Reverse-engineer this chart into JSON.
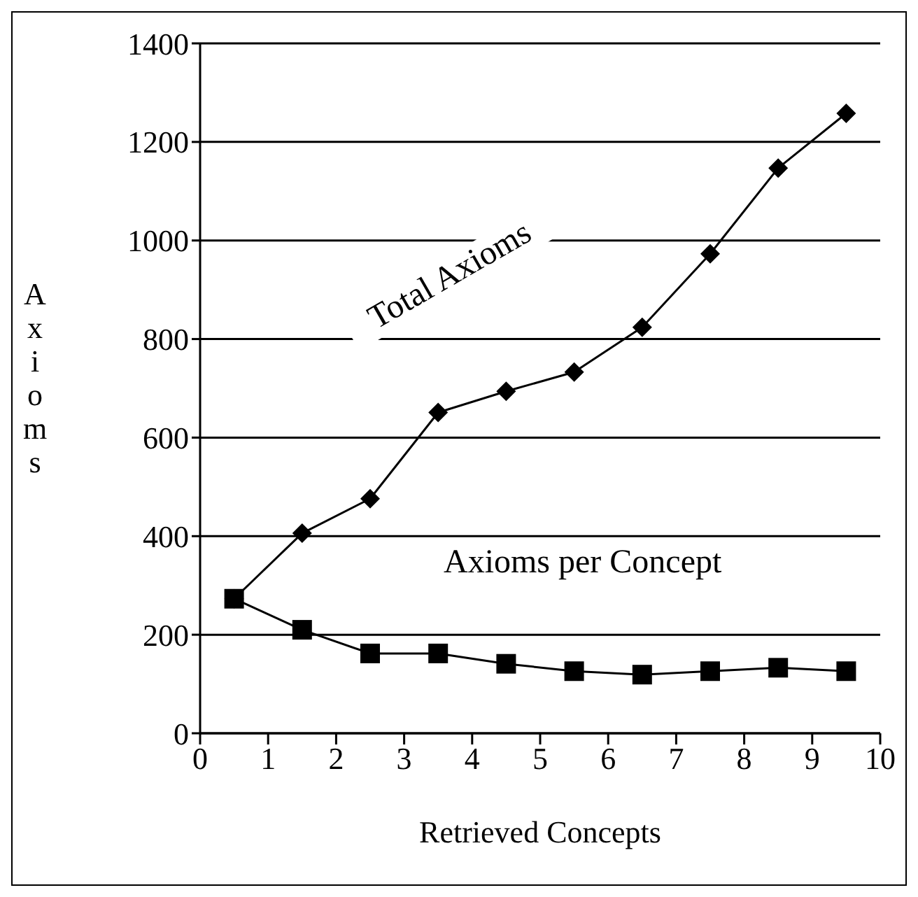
{
  "chart_data": {
    "type": "line",
    "xlabel": "Retrieved Concepts",
    "ylabel": "Axioms",
    "x": [
      0.5,
      1.5,
      2.5,
      3.5,
      4.5,
      5.5,
      6.5,
      7.5,
      8.5,
      9.5
    ],
    "series": [
      {
        "name": "Total Axioms",
        "color": "#000000",
        "marker": "diamond",
        "values": [
          273,
          406,
          476,
          651,
          694,
          733,
          824,
          973,
          1147,
          1258
        ]
      },
      {
        "name": "Axioms per Concept",
        "color": "#000000",
        "marker": "square",
        "values": [
          273,
          210,
          162,
          162,
          141,
          126,
          119,
          126,
          133,
          126
        ]
      }
    ],
    "xlim": [
      0,
      10
    ],
    "xticks": [
      0,
      1,
      2,
      3,
      4,
      5,
      6,
      7,
      8,
      9,
      10
    ],
    "ylim": [
      0,
      1400
    ],
    "yticks": [
      0,
      200,
      400,
      600,
      800,
      1000,
      1200,
      1400
    ],
    "grid": "y"
  }
}
